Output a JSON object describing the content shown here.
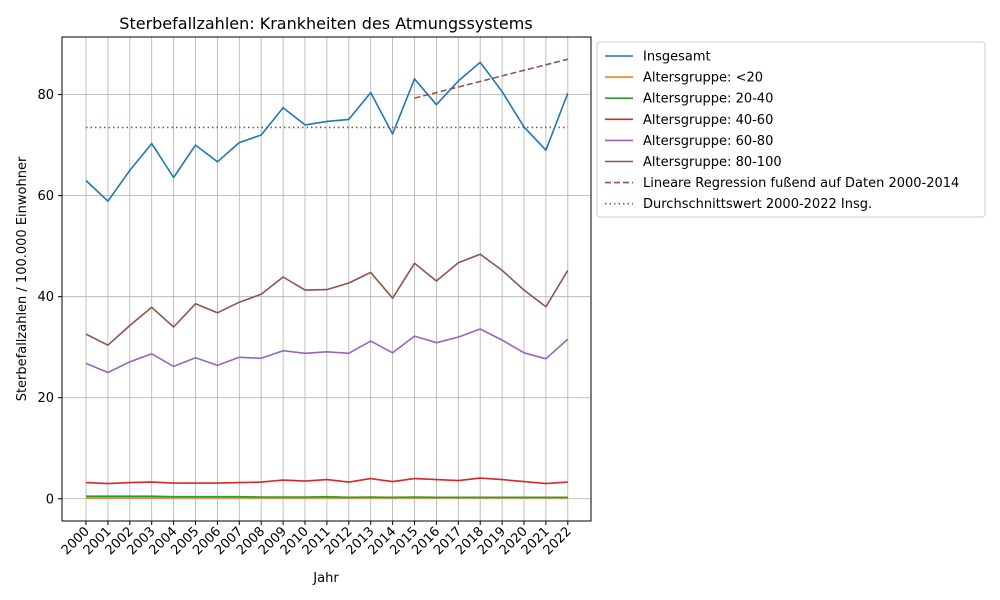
{
  "chart_data": {
    "type": "line",
    "title": "Sterbefallzahlen: Krankheiten des Atmungssystems",
    "xlabel": "Jahr",
    "ylabel": "Sterbefallzahlen / 100.000 Einwohner",
    "x": [
      "2000",
      "2001",
      "2002",
      "2003",
      "2004",
      "2005",
      "2006",
      "2007",
      "2008",
      "2009",
      "2010",
      "2011",
      "2012",
      "2013",
      "2014",
      "2015",
      "2016",
      "2017",
      "2018",
      "2019",
      "2020",
      "2021",
      "2022"
    ],
    "ylim": [
      -4.4,
      91.4
    ],
    "yticks": [
      0,
      20,
      40,
      60,
      80
    ],
    "grid": true,
    "legend_position": "outside right",
    "series": [
      {
        "name": "Insgesamt",
        "color": "#1f77b4",
        "style": "solid",
        "values": [
          63.0,
          58.9,
          65.0,
          70.3,
          63.6,
          70.0,
          66.7,
          70.5,
          72.0,
          77.4,
          74.0,
          74.7,
          75.1,
          80.4,
          72.2,
          83.1,
          78.0,
          82.7,
          86.4,
          80.6,
          73.6,
          69.0,
          80.3
        ]
      },
      {
        "name": "Altersgruppe: <20",
        "color": "#ff7f0e",
        "style": "solid",
        "values": [
          0.2,
          0.2,
          0.2,
          0.2,
          0.2,
          0.2,
          0.2,
          0.2,
          0.2,
          0.2,
          0.2,
          0.2,
          0.2,
          0.2,
          0.2,
          0.2,
          0.2,
          0.2,
          0.2,
          0.2,
          0.2,
          0.2,
          0.2
        ]
      },
      {
        "name": "Altersgruppe: 20-40",
        "color": "#2ca02c",
        "style": "solid",
        "values": [
          0.5,
          0.5,
          0.5,
          0.5,
          0.4,
          0.4,
          0.4,
          0.4,
          0.35,
          0.35,
          0.35,
          0.4,
          0.3,
          0.35,
          0.3,
          0.35,
          0.3,
          0.3,
          0.3,
          0.3,
          0.3,
          0.3,
          0.3
        ]
      },
      {
        "name": "Altersgruppe: 40-60",
        "color": "#d62728",
        "style": "solid",
        "values": [
          3.2,
          3.0,
          3.2,
          3.3,
          3.1,
          3.1,
          3.1,
          3.2,
          3.3,
          3.7,
          3.5,
          3.8,
          3.3,
          4.0,
          3.4,
          4.0,
          3.8,
          3.6,
          4.1,
          3.8,
          3.4,
          3.0,
          3.3
        ]
      },
      {
        "name": "Altersgruppe: 60-80",
        "color": "#9467bd",
        "style": "solid",
        "values": [
          26.8,
          25.0,
          27.1,
          28.7,
          26.2,
          27.9,
          26.4,
          28.0,
          27.8,
          29.3,
          28.8,
          29.1,
          28.8,
          31.2,
          28.9,
          32.2,
          30.9,
          32.0,
          33.6,
          31.4,
          28.9,
          27.7,
          31.6
        ]
      },
      {
        "name": "Altersgruppe: 80-100",
        "color": "#8c564b",
        "style": "solid",
        "values": [
          32.6,
          30.4,
          34.3,
          37.9,
          34.0,
          38.6,
          36.8,
          38.9,
          40.5,
          43.9,
          41.3,
          41.4,
          42.7,
          44.8,
          39.7,
          46.6,
          43.1,
          46.7,
          48.4,
          45.2,
          41.3,
          38.0,
          45.2
        ]
      },
      {
        "name": "Lineare Regression fußend auf Daten 2000-2014",
        "color": "#8c564b",
        "style": "dashed",
        "x": [
          "2015",
          "2016",
          "2017",
          "2018",
          "2019",
          "2020",
          "2021",
          "2022"
        ],
        "values": [
          79.3,
          80.4,
          81.5,
          82.6,
          83.7,
          84.8,
          85.9,
          87.0
        ]
      },
      {
        "name": "Durchschnittswert 2000-2022 Insg.",
        "color": "#8c564b",
        "style": "dotted",
        "values": [
          73.5,
          73.5,
          73.5,
          73.5,
          73.5,
          73.5,
          73.5,
          73.5,
          73.5,
          73.5,
          73.5,
          73.5,
          73.5,
          73.5,
          73.5,
          73.5,
          73.5,
          73.5,
          73.5,
          73.5,
          73.5,
          73.5,
          73.5
        ]
      }
    ]
  }
}
